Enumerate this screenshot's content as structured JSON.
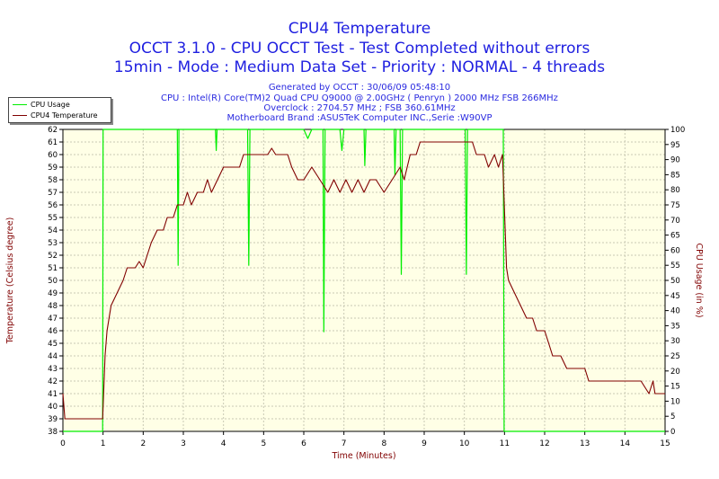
{
  "chart_data": {
    "type": "line",
    "title": "CPU4 Temperature",
    "subtitle_lines": [
      "OCCT 3.1.0 - CPU OCCT Test - Test Completed without errors",
      "15min - Mode : Medium Data Set - Priority : NORMAL - 4 threads"
    ],
    "info_lines": [
      "Generated by OCCT : 30/06/09 05:48:10",
      "CPU : Intel(R) Core(TM)2 Quad CPU Q9000 @ 2.00GHz ( Penryn ) 2000 MHz FSB 266MHz",
      "Overclock : 2704.57 MHz ; FSB 360.61MHz",
      "Motherboard Brand :ASUSTeK Computer INC.,Serie :W90VP"
    ],
    "xlabel": "Time (Minutes)",
    "ylabel": "Temperature (Celsius degree)",
    "y2label": "CPU Usage (in %)",
    "xlim": [
      0,
      15
    ],
    "ylim": [
      38,
      62
    ],
    "y2lim": [
      0,
      100
    ],
    "x_ticks": [
      "0",
      "1",
      "2",
      "3",
      "4",
      "5",
      "6",
      "7",
      "8",
      "9",
      "10",
      "11",
      "12",
      "13",
      "14",
      "15"
    ],
    "y_ticks": [
      "38",
      "39",
      "40",
      "41",
      "42",
      "43",
      "44",
      "45",
      "46",
      "47",
      "48",
      "49",
      "50",
      "51",
      "52",
      "53",
      "54",
      "55",
      "56",
      "57",
      "58",
      "59",
      "60",
      "61",
      "62"
    ],
    "y2_ticks": [
      "0",
      "5",
      "10",
      "15",
      "20",
      "25",
      "30",
      "35",
      "40",
      "45",
      "50",
      "55",
      "60",
      "65",
      "70",
      "75",
      "80",
      "85",
      "90",
      "95",
      "100"
    ],
    "grid": true,
    "legend_position": "top-left outside",
    "series": [
      {
        "name": "CPU Usage",
        "axis": "right",
        "color": "#00ee00",
        "points": [
          [
            0,
            0
          ],
          [
            0.99,
            0
          ],
          [
            1.0,
            100
          ],
          [
            2.85,
            100
          ],
          [
            2.87,
            55
          ],
          [
            2.89,
            100
          ],
          [
            3.8,
            100
          ],
          [
            3.82,
            93
          ],
          [
            3.84,
            100
          ],
          [
            4.6,
            100
          ],
          [
            4.63,
            55
          ],
          [
            4.66,
            100
          ],
          [
            6.0,
            100
          ],
          [
            6.1,
            97
          ],
          [
            6.2,
            100
          ],
          [
            6.48,
            100
          ],
          [
            6.5,
            33
          ],
          [
            6.53,
            100
          ],
          [
            6.9,
            100
          ],
          [
            6.95,
            93
          ],
          [
            7.0,
            100
          ],
          [
            7.5,
            100
          ],
          [
            7.52,
            88
          ],
          [
            7.55,
            100
          ],
          [
            8.25,
            100
          ],
          [
            8.27,
            85
          ],
          [
            8.3,
            100
          ],
          [
            8.4,
            100
          ],
          [
            8.43,
            52
          ],
          [
            8.46,
            100
          ],
          [
            10.02,
            100
          ],
          [
            10.05,
            52
          ],
          [
            10.08,
            100
          ],
          [
            10.97,
            100
          ],
          [
            10.99,
            0
          ],
          [
            15,
            0
          ]
        ]
      },
      {
        "name": "CPU4 Temperature",
        "axis": "left",
        "color": "#800000",
        "points": [
          [
            0,
            41
          ],
          [
            0.05,
            39
          ],
          [
            0.2,
            39
          ],
          [
            0.99,
            39
          ],
          [
            1.05,
            44
          ],
          [
            1.1,
            46
          ],
          [
            1.2,
            48
          ],
          [
            1.35,
            49
          ],
          [
            1.5,
            50
          ],
          [
            1.6,
            51
          ],
          [
            1.8,
            51
          ],
          [
            1.9,
            51.5
          ],
          [
            2.0,
            51
          ],
          [
            2.1,
            52
          ],
          [
            2.2,
            53
          ],
          [
            2.35,
            54
          ],
          [
            2.5,
            54
          ],
          [
            2.6,
            55
          ],
          [
            2.75,
            55
          ],
          [
            2.85,
            56
          ],
          [
            3.0,
            56
          ],
          [
            3.1,
            57
          ],
          [
            3.2,
            56
          ],
          [
            3.35,
            57
          ],
          [
            3.5,
            57
          ],
          [
            3.6,
            58
          ],
          [
            3.7,
            57
          ],
          [
            3.85,
            58
          ],
          [
            4.0,
            59
          ],
          [
            4.4,
            59
          ],
          [
            4.5,
            60
          ],
          [
            5.1,
            60
          ],
          [
            5.2,
            60.5
          ],
          [
            5.3,
            60
          ],
          [
            5.6,
            60
          ],
          [
            5.7,
            59
          ],
          [
            5.85,
            58
          ],
          [
            6.0,
            58
          ],
          [
            6.2,
            59
          ],
          [
            6.4,
            58
          ],
          [
            6.6,
            57
          ],
          [
            6.75,
            58
          ],
          [
            6.9,
            57
          ],
          [
            7.05,
            58
          ],
          [
            7.2,
            57
          ],
          [
            7.35,
            58
          ],
          [
            7.5,
            57
          ],
          [
            7.65,
            58
          ],
          [
            7.8,
            58
          ],
          [
            8.0,
            57
          ],
          [
            8.2,
            58
          ],
          [
            8.4,
            59
          ],
          [
            8.5,
            58
          ],
          [
            8.65,
            60
          ],
          [
            8.8,
            60
          ],
          [
            8.9,
            61
          ],
          [
            9.5,
            61
          ],
          [
            10.2,
            61
          ],
          [
            10.3,
            60
          ],
          [
            10.5,
            60
          ],
          [
            10.6,
            59
          ],
          [
            10.75,
            60
          ],
          [
            10.85,
            59
          ],
          [
            10.95,
            60
          ],
          [
            11.05,
            51
          ],
          [
            11.1,
            50
          ],
          [
            11.25,
            49
          ],
          [
            11.4,
            48
          ],
          [
            11.55,
            47
          ],
          [
            11.7,
            47
          ],
          [
            11.8,
            46
          ],
          [
            12.0,
            46
          ],
          [
            12.1,
            45
          ],
          [
            12.2,
            44
          ],
          [
            12.4,
            44
          ],
          [
            12.55,
            43
          ],
          [
            13.0,
            43
          ],
          [
            13.1,
            42
          ],
          [
            13.2,
            42
          ],
          [
            13.25,
            42
          ],
          [
            14.0,
            42
          ],
          [
            14.4,
            42
          ],
          [
            14.6,
            41
          ],
          [
            14.7,
            42
          ],
          [
            14.75,
            41
          ],
          [
            14.8,
            41
          ],
          [
            15,
            41
          ]
        ]
      }
    ]
  }
}
